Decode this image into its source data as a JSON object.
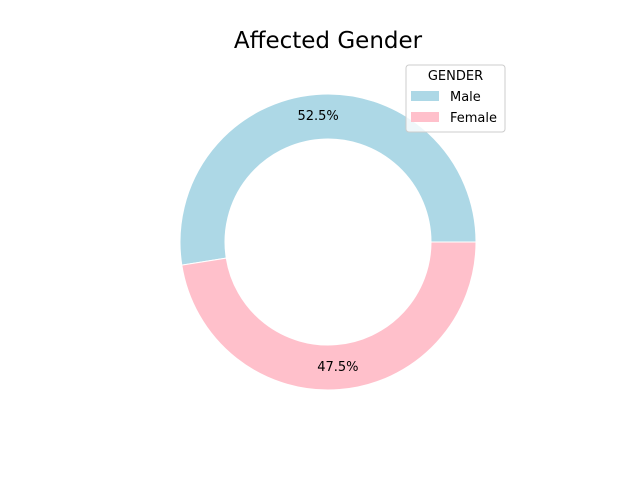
{
  "chart_data": {
    "type": "pie",
    "style": "donut",
    "title": "Affected Gender",
    "categories": [
      "Male",
      "Female"
    ],
    "values": [
      52.5,
      47.5
    ],
    "labels": [
      "52.5%",
      "47.5%"
    ],
    "colors": [
      "#add8e6",
      "#ffc0cb"
    ],
    "legend": {
      "title": "GENDER",
      "placement": "top-right"
    }
  }
}
